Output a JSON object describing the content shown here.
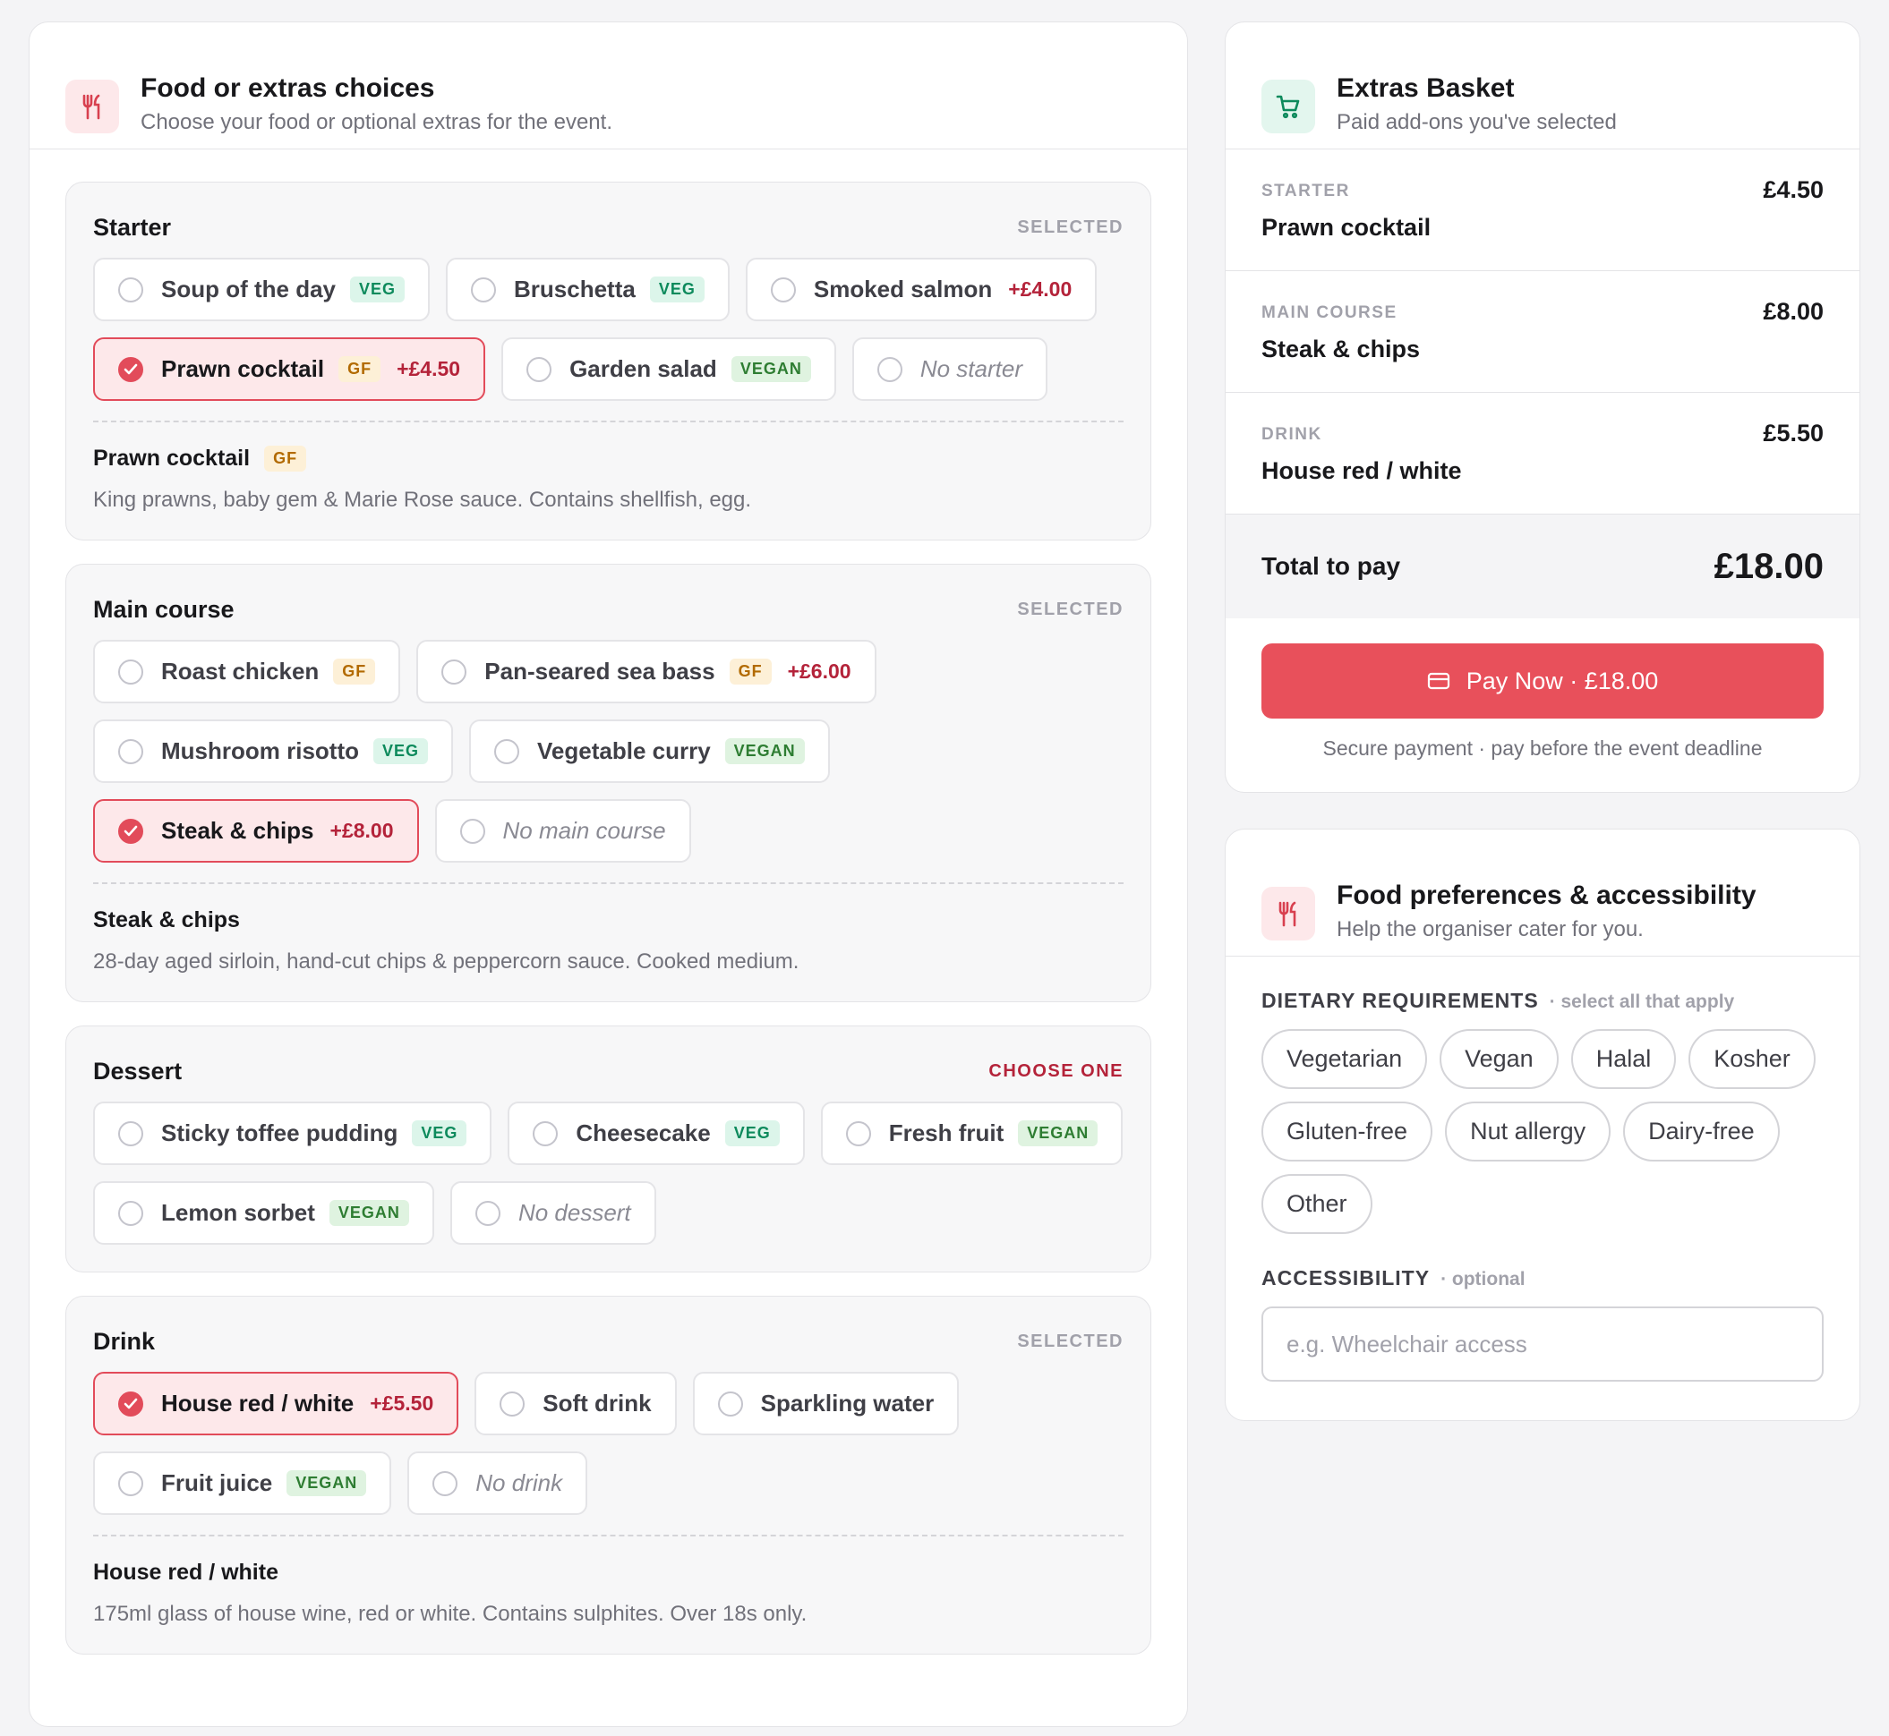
{
  "food": {
    "title": "Food or extras choices",
    "subtitle": "Choose your food or optional extras for the event.",
    "sections": [
      {
        "title": "Starter",
        "status": "SELECTED",
        "status_alert": false,
        "options": [
          {
            "label": "Soup of the day",
            "tag": "VEG",
            "tag_type": "veg",
            "price": "",
            "selected": false,
            "none": false
          },
          {
            "label": "Bruschetta",
            "tag": "VEG",
            "tag_type": "veg",
            "price": "",
            "selected": false,
            "none": false
          },
          {
            "label": "Smoked salmon",
            "tag": "",
            "tag_type": "",
            "price": "+£4.00",
            "selected": false,
            "none": false
          },
          {
            "label": "Prawn cocktail",
            "tag": "GF",
            "tag_type": "gf",
            "price": "+£4.50",
            "selected": true,
            "none": false
          },
          {
            "label": "Garden salad",
            "tag": "VEGAN",
            "tag_type": "vegan",
            "price": "",
            "selected": false,
            "none": false
          },
          {
            "label": "No starter",
            "tag": "",
            "tag_type": "",
            "price": "",
            "selected": false,
            "none": true
          }
        ],
        "detail": {
          "title": "Prawn cocktail",
          "tag": "GF",
          "tag_type": "gf",
          "description": "King prawns, baby gem & Marie Rose sauce. Contains shellfish, egg."
        }
      },
      {
        "title": "Main course",
        "status": "SELECTED",
        "status_alert": false,
        "options": [
          {
            "label": "Roast chicken",
            "tag": "GF",
            "tag_type": "gf",
            "price": "",
            "selected": false,
            "none": false
          },
          {
            "label": "Pan-seared sea bass",
            "tag": "GF",
            "tag_type": "gf",
            "price": "+£6.00",
            "selected": false,
            "none": false
          },
          {
            "label": "Mushroom risotto",
            "tag": "VEG",
            "tag_type": "veg",
            "price": "",
            "selected": false,
            "none": false
          },
          {
            "label": "Vegetable curry",
            "tag": "VEGAN",
            "tag_type": "vegan",
            "price": "",
            "selected": false,
            "none": false
          },
          {
            "label": "Steak & chips",
            "tag": "",
            "tag_type": "",
            "price": "+£8.00",
            "selected": true,
            "none": false
          },
          {
            "label": "No main course",
            "tag": "",
            "tag_type": "",
            "price": "",
            "selected": false,
            "none": true
          }
        ],
        "detail": {
          "title": "Steak & chips",
          "tag": "",
          "tag_type": "",
          "description": "28-day aged sirloin, hand-cut chips & peppercorn sauce. Cooked medium."
        }
      },
      {
        "title": "Dessert",
        "status": "CHOOSE ONE",
        "status_alert": true,
        "options": [
          {
            "label": "Sticky toffee pudding",
            "tag": "VEG",
            "tag_type": "veg",
            "price": "",
            "selected": false,
            "none": false
          },
          {
            "label": "Cheesecake",
            "tag": "VEG",
            "tag_type": "veg",
            "price": "",
            "selected": false,
            "none": false
          },
          {
            "label": "Fresh fruit",
            "tag": "VEGAN",
            "tag_type": "vegan",
            "price": "",
            "selected": false,
            "none": false
          },
          {
            "label": "Lemon sorbet",
            "tag": "VEGAN",
            "tag_type": "vegan",
            "price": "",
            "selected": false,
            "none": false
          },
          {
            "label": "No dessert",
            "tag": "",
            "tag_type": "",
            "price": "",
            "selected": false,
            "none": true
          }
        ],
        "detail": null
      },
      {
        "title": "Drink",
        "status": "SELECTED",
        "status_alert": false,
        "options": [
          {
            "label": "House red / white",
            "tag": "",
            "tag_type": "",
            "price": "+£5.50",
            "selected": true,
            "none": false
          },
          {
            "label": "Soft drink",
            "tag": "",
            "tag_type": "",
            "price": "",
            "selected": false,
            "none": false
          },
          {
            "label": "Sparkling water",
            "tag": "",
            "tag_type": "",
            "price": "",
            "selected": false,
            "none": false
          },
          {
            "label": "Fruit juice",
            "tag": "VEGAN",
            "tag_type": "vegan",
            "price": "",
            "selected": false,
            "none": false
          },
          {
            "label": "No drink",
            "tag": "",
            "tag_type": "",
            "price": "",
            "selected": false,
            "none": true
          }
        ],
        "detail": {
          "title": "House red / white",
          "tag": "",
          "tag_type": "",
          "description": "175ml glass of house wine, red or white. Contains sulphites. Over 18s only."
        }
      }
    ]
  },
  "basket": {
    "title": "Extras Basket",
    "subtitle": "Paid add-ons you've selected",
    "items": [
      {
        "category": "STARTER",
        "item": "Prawn cocktail",
        "price": "£4.50"
      },
      {
        "category": "MAIN COURSE",
        "item": "Steak & chips",
        "price": "£8.00"
      },
      {
        "category": "DRINK",
        "item": "House red / white",
        "price": "£5.50"
      }
    ],
    "total_label": "Total to pay",
    "total_value": "£18.00",
    "pay_label": "Pay Now · £18.00",
    "secure_note": "Secure payment · pay before the event deadline"
  },
  "prefs": {
    "title": "Food preferences & accessibility",
    "subtitle": "Help the organiser cater for you.",
    "dietary_label": "DIETARY REQUIREMENTS",
    "dietary_hint": "· select all that apply",
    "dietary_options": [
      "Vegetarian",
      "Vegan",
      "Halal",
      "Kosher",
      "Gluten-free",
      "Nut allergy",
      "Dairy-free",
      "Other"
    ],
    "accessibility_label": "ACCESSIBILITY",
    "accessibility_hint": "· optional",
    "accessibility_placeholder": "e.g. Wheelchair access",
    "accessibility_value": ""
  },
  "icons": {
    "food": "cutlery-icon",
    "basket": "cart-icon",
    "pay": "credit-card-icon",
    "selected": "check-icon"
  },
  "colors": {
    "accent": "#e8505b",
    "accent_soft": "#fde8ea",
    "alert_text": "#b4233a",
    "basket_icon": "#0d8a5c"
  }
}
